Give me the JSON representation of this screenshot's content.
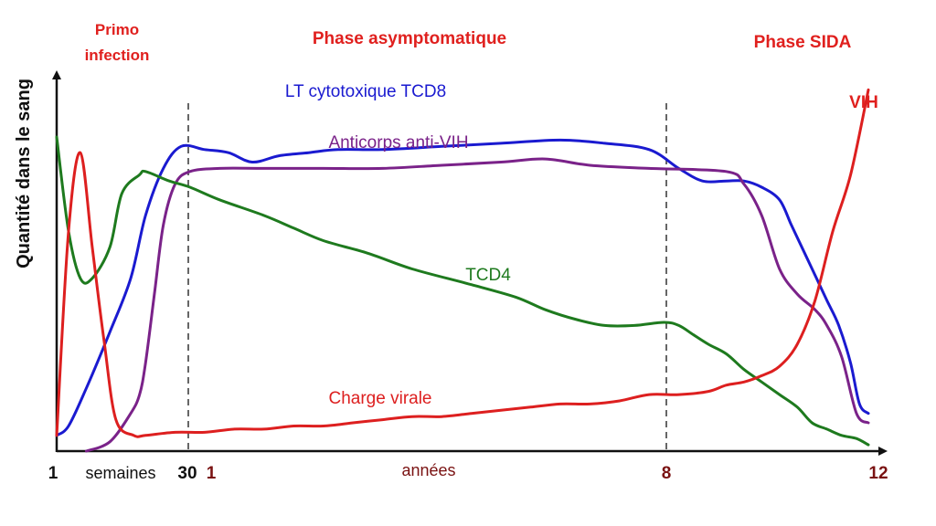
{
  "chart_data": {
    "type": "line",
    "phases": [
      "Primo\ninfection",
      "Phase asymptomatique",
      "Phase SIDA"
    ],
    "ylabel": "Quantité dans le sang",
    "x_ticks": [
      {
        "label": "1",
        "color": "#111111"
      },
      {
        "label": "30",
        "color": "#111111"
      },
      {
        "label": "1",
        "color": "#7a1212"
      },
      {
        "label": "8",
        "color": "#7a1212"
      },
      {
        "label": "12",
        "color": "#7a1212"
      }
    ],
    "x_units": [
      {
        "label": "semaines",
        "color": "#111111"
      },
      {
        "label": "années",
        "color": "#7a1212"
      }
    ],
    "ylim": [
      0,
      100
    ],
    "grid": false,
    "series": [
      {
        "name": "LT cytotoxique TCD8",
        "color": "#1a1ad0",
        "points": [
          [
            0,
            5
          ],
          [
            4,
            8
          ],
          [
            10,
            20
          ],
          [
            18,
            38
          ],
          [
            25,
            55
          ],
          [
            30,
            75
          ],
          [
            36,
            90
          ],
          [
            42,
            97
          ],
          [
            50,
            96
          ],
          [
            58,
            95
          ],
          [
            66,
            92
          ],
          [
            75,
            94
          ],
          [
            85,
            95
          ],
          [
            95,
            96
          ],
          [
            110,
            96
          ],
          [
            130,
            97
          ],
          [
            150,
            98
          ],
          [
            170,
            99
          ],
          [
            185,
            98
          ],
          [
            200,
            96
          ],
          [
            210,
            90
          ],
          [
            218,
            86
          ],
          [
            226,
            86
          ],
          [
            232,
            86
          ],
          [
            238,
            84
          ],
          [
            244,
            80
          ],
          [
            248,
            72
          ],
          [
            252,
            64
          ],
          [
            256,
            56
          ],
          [
            260,
            48
          ],
          [
            264,
            40
          ],
          [
            268,
            28
          ],
          [
            271,
            15
          ],
          [
            274,
            12
          ]
        ]
      },
      {
        "name": "Anticorps anti-VIH",
        "color": "#7a2289",
        "points": [
          [
            10,
            0
          ],
          [
            18,
            3
          ],
          [
            25,
            12
          ],
          [
            28,
            18
          ],
          [
            30,
            28
          ],
          [
            33,
            50
          ],
          [
            36,
            72
          ],
          [
            40,
            85
          ],
          [
            45,
            89
          ],
          [
            55,
            90
          ],
          [
            70,
            90
          ],
          [
            90,
            90
          ],
          [
            110,
            90
          ],
          [
            130,
            91
          ],
          [
            150,
            92
          ],
          [
            165,
            93
          ],
          [
            180,
            91
          ],
          [
            200,
            90
          ],
          [
            226,
            89
          ],
          [
            232,
            85
          ],
          [
            238,
            75
          ],
          [
            244,
            58
          ],
          [
            250,
            50
          ],
          [
            256,
            45
          ],
          [
            260,
            40
          ],
          [
            265,
            30
          ],
          [
            270,
            12
          ],
          [
            274,
            9
          ]
        ]
      },
      {
        "name": "TCD4",
        "color": "#1e7a1e",
        "points": [
          [
            0,
            100
          ],
          [
            4,
            70
          ],
          [
            8,
            55
          ],
          [
            12,
            55
          ],
          [
            18,
            65
          ],
          [
            22,
            82
          ],
          [
            28,
            88
          ],
          [
            30,
            89
          ],
          [
            38,
            86
          ],
          [
            45,
            84
          ],
          [
            55,
            80
          ],
          [
            70,
            75
          ],
          [
            80,
            71
          ],
          [
            90,
            67
          ],
          [
            105,
            63
          ],
          [
            120,
            58
          ],
          [
            140,
            53
          ],
          [
            155,
            49
          ],
          [
            165,
            45
          ],
          [
            175,
            42
          ],
          [
            185,
            40
          ],
          [
            195,
            40
          ],
          [
            205,
            41
          ],
          [
            210,
            40
          ],
          [
            215,
            37
          ],
          [
            220,
            34
          ],
          [
            226,
            31
          ],
          [
            232,
            26
          ],
          [
            238,
            22
          ],
          [
            244,
            18
          ],
          [
            250,
            14
          ],
          [
            255,
            9
          ],
          [
            260,
            7
          ],
          [
            265,
            5
          ],
          [
            270,
            4
          ],
          [
            274,
            2
          ]
        ]
      },
      {
        "name": "Charge virale",
        "color": "#dd1f1f",
        "points": [
          [
            0,
            5
          ],
          [
            4,
            70
          ],
          [
            8,
            95
          ],
          [
            12,
            65
          ],
          [
            16,
            35
          ],
          [
            20,
            10
          ],
          [
            26,
            5
          ],
          [
            30,
            5
          ],
          [
            40,
            6
          ],
          [
            50,
            6
          ],
          [
            60,
            7
          ],
          [
            70,
            7
          ],
          [
            80,
            8
          ],
          [
            90,
            8
          ],
          [
            100,
            9
          ],
          [
            110,
            10
          ],
          [
            120,
            11
          ],
          [
            130,
            11
          ],
          [
            140,
            12
          ],
          [
            150,
            13
          ],
          [
            160,
            14
          ],
          [
            170,
            15
          ],
          [
            180,
            15
          ],
          [
            190,
            16
          ],
          [
            200,
            18
          ],
          [
            210,
            18
          ],
          [
            220,
            19
          ],
          [
            226,
            21
          ],
          [
            232,
            22
          ],
          [
            238,
            24
          ],
          [
            244,
            27
          ],
          [
            250,
            34
          ],
          [
            256,
            48
          ],
          [
            262,
            70
          ],
          [
            268,
            88
          ],
          [
            274,
            115
          ]
        ]
      }
    ]
  }
}
